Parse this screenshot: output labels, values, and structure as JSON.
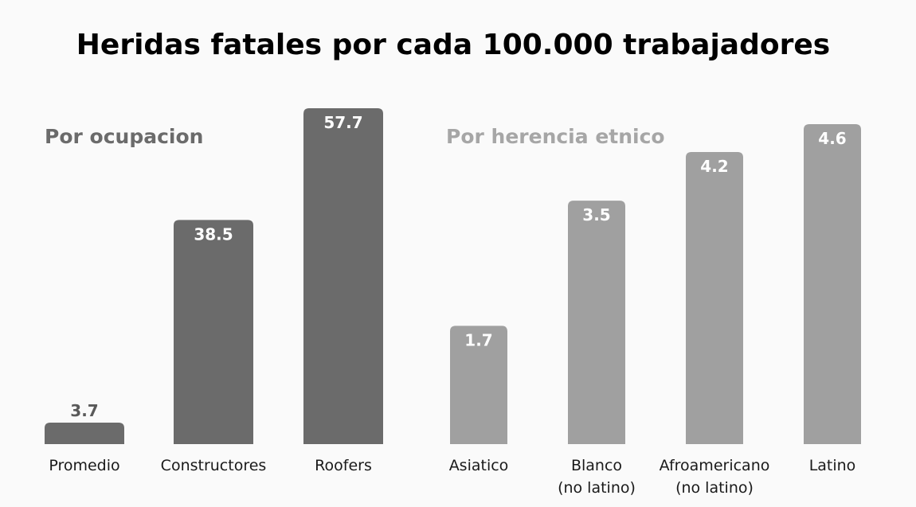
{
  "colors": {
    "background": "#fafafa",
    "occupation_bar": "#6b6b6b",
    "occupation_title": "#6b6b6b",
    "ethnicity_bar": "#a0a0a0",
    "ethnicity_title": "#a6a6a6",
    "value_inside": "#ffffff",
    "value_outside": "#595959"
  },
  "chart_data": {
    "type": "bar",
    "title": "Heridas fatales por cada 100.000 trabajadores",
    "grid": false,
    "legend": "none",
    "groups": [
      {
        "name": "Por ocupacion",
        "categories": [
          [
            "Promedio"
          ],
          [
            "Constructores"
          ],
          [
            "Roofers"
          ]
        ],
        "values": [
          3.7,
          38.5,
          57.7
        ],
        "labels": [
          "3.7",
          "38.5",
          "57.7"
        ],
        "ylim": [
          0,
          57.7
        ]
      },
      {
        "name": "Por herencia etnico",
        "categories": [
          [
            "Asiatico"
          ],
          [
            "Blanco",
            "(no latino)"
          ],
          [
            "Afroamericano",
            "(no latino)"
          ],
          [
            "Latino"
          ]
        ],
        "values": [
          1.7,
          3.5,
          4.2,
          4.6
        ],
        "labels": [
          "1.7",
          "3.5",
          "4.2",
          "4.6"
        ],
        "ylim": [
          0,
          4.6
        ]
      }
    ]
  }
}
